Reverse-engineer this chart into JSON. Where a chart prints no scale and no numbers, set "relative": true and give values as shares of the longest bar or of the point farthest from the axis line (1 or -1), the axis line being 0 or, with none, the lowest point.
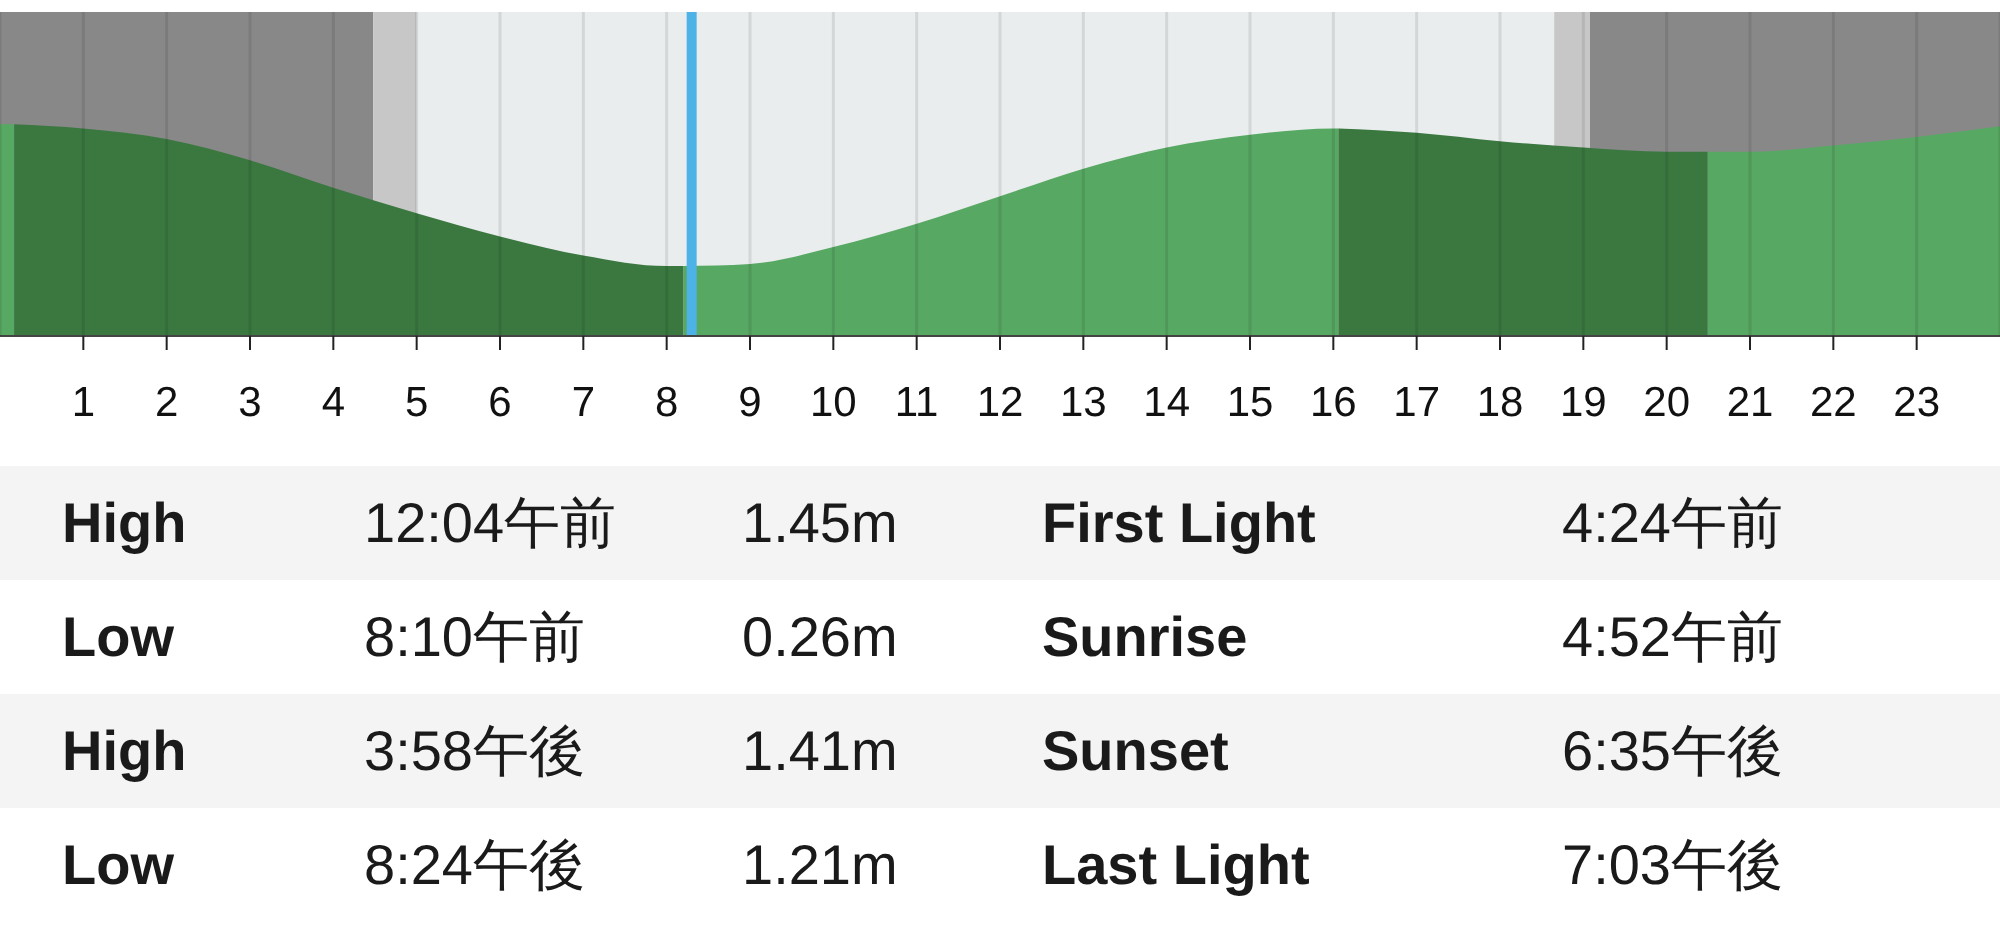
{
  "chart_data": {
    "type": "area",
    "relative": true,
    "x": [
      0,
      0.17,
      1,
      2,
      3,
      4,
      5,
      6,
      7,
      8,
      8.2,
      9,
      10,
      11,
      12,
      13,
      14,
      15,
      16,
      16.06,
      17,
      18,
      19,
      20,
      20.49,
      21,
      22,
      23,
      24
    ],
    "series": [
      {
        "color": "#57a862",
        "values": [
          1.0,
          1.0,
          null,
          null,
          null,
          null,
          null,
          null,
          null,
          null,
          0.33,
          0.34,
          0.42,
          0.53,
          0.66,
          0.79,
          0.89,
          0.95,
          0.98,
          0.98,
          null,
          null,
          null,
          null,
          0.87,
          0.87,
          0.9,
          0.94,
          0.99
        ]
      },
      {
        "color": "#3a7840",
        "values": [
          null,
          1.0,
          0.98,
          0.93,
          0.83,
          0.7,
          0.58,
          0.47,
          0.38,
          0.33,
          0.33,
          null,
          null,
          null,
          null,
          null,
          null,
          null,
          null,
          0.98,
          0.96,
          0.92,
          0.89,
          0.87,
          0.87,
          null,
          null,
          null,
          null
        ]
      }
    ],
    "xlim": [
      0,
      24
    ],
    "xticks": [
      1,
      2,
      3,
      4,
      5,
      6,
      7,
      8,
      9,
      10,
      11,
      12,
      13,
      14,
      15,
      16,
      17,
      18,
      19,
      20,
      21,
      22,
      23
    ],
    "grid": "x",
    "bands": [
      {
        "axis": "x",
        "from": 0,
        "to": 4.48,
        "color": "#888888"
      },
      {
        "axis": "x",
        "from": 4.48,
        "to": 5.0,
        "color": "#c7c7c7"
      },
      {
        "axis": "x",
        "from": 5.0,
        "to": 18.65,
        "color": "#e9edee"
      },
      {
        "axis": "x",
        "from": 18.65,
        "to": 19.08,
        "color": "#c7c7c7"
      },
      {
        "axis": "x",
        "from": 19.08,
        "to": 24,
        "color": "#888888"
      }
    ],
    "ref_lines": [
      {
        "axis": "x",
        "value": 8.3,
        "color": "#4db3e6"
      }
    ],
    "annotations": [
      "High",
      "12:04午前",
      "1.45m",
      "First Light",
      "4:24午前",
      "Low",
      "8:10午前",
      "0.26m",
      "Sunrise",
      "4:52午前",
      "High",
      "3:58午後",
      "1.41m",
      "Sunset",
      "6:35午後",
      "Low",
      "8:24午後",
      "1.21m",
      "Last Light",
      "7:03午後"
    ]
  }
}
